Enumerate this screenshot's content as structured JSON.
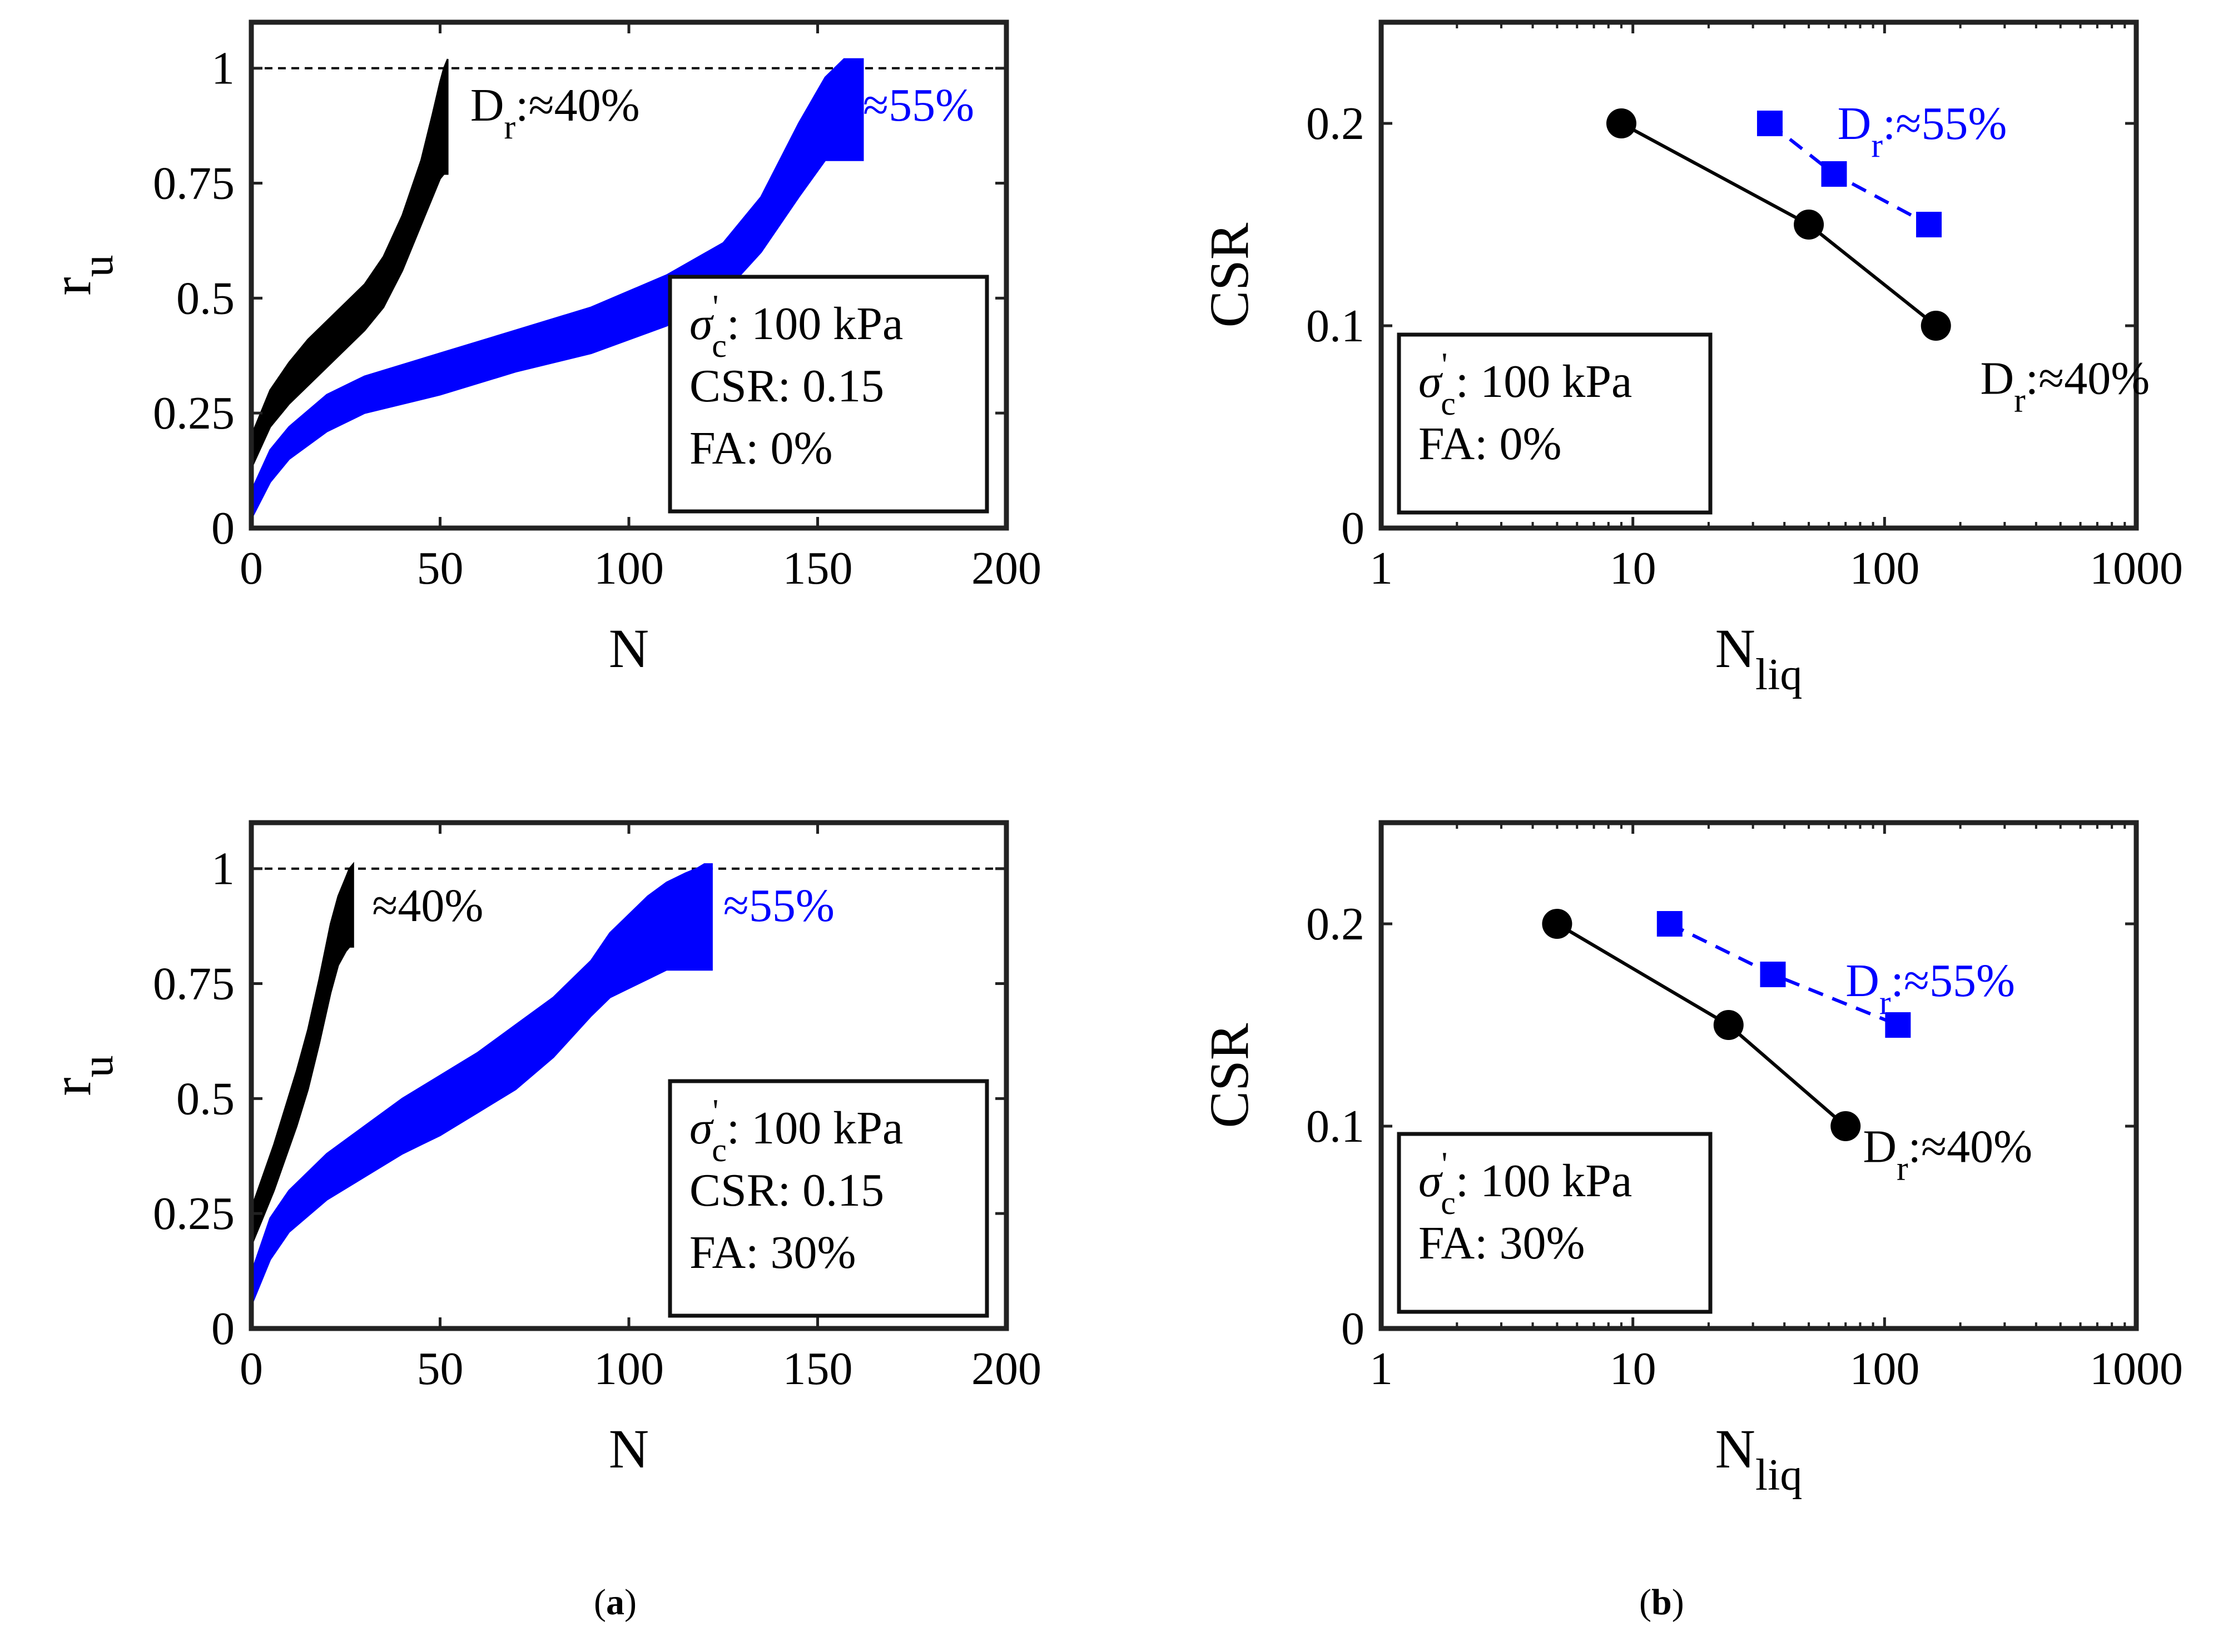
{
  "figure_labels": {
    "a": "a",
    "b": "b"
  },
  "chart_data": [
    {
      "id": "ru-fa0",
      "type": "line",
      "xlabel": "N",
      "ylabel": "r",
      "ylabel_sub": "u",
      "xlim": [
        0,
        200
      ],
      "ylim": [
        0,
        1.1
      ],
      "xticks": [
        "0",
        "50",
        "100",
        "150",
        "200"
      ],
      "xtick_values": [
        0,
        50,
        100,
        150,
        200
      ],
      "yticks": [
        "0",
        "0.25",
        "0.5",
        "0.75",
        "1"
      ],
      "ytick_values": [
        0,
        0.25,
        0.5,
        0.75,
        1
      ],
      "reference_line": {
        "y": 1,
        "style": "dashed"
      },
      "series": [
        {
          "name": "Dr≈40%",
          "color": "#000000",
          "x": [
            0,
            5,
            10,
            15,
            20,
            25,
            30,
            35,
            40,
            45,
            48,
            50,
            51,
            52
          ],
          "lower": [
            0.13,
            0.22,
            0.27,
            0.31,
            0.35,
            0.39,
            0.43,
            0.48,
            0.56,
            0.66,
            0.72,
            0.76,
            0.77,
            0.77
          ],
          "upper": [
            0.2,
            0.3,
            0.36,
            0.41,
            0.45,
            0.49,
            0.53,
            0.59,
            0.68,
            0.8,
            0.9,
            0.97,
            1.0,
            1.02
          ]
        },
        {
          "name": "Dr≈55%",
          "color": "#0000ff",
          "x": [
            0,
            5,
            10,
            20,
            30,
            50,
            70,
            90,
            110,
            125,
            135,
            145,
            152,
            157,
            160,
            162
          ],
          "lower": [
            0.02,
            0.1,
            0.15,
            0.21,
            0.25,
            0.29,
            0.34,
            0.38,
            0.44,
            0.51,
            0.6,
            0.72,
            0.8,
            0.8,
            0.8,
            0.8
          ],
          "upper": [
            0.08,
            0.17,
            0.22,
            0.29,
            0.33,
            0.38,
            0.43,
            0.48,
            0.55,
            0.62,
            0.72,
            0.88,
            0.98,
            1.02,
            1.02,
            1.02
          ]
        }
      ],
      "annotations": [
        {
          "text": "D",
          "sub": "r",
          "tail": ":≈40%",
          "color": "#000000",
          "at_x": 58,
          "at_y": 0.92
        },
        {
          "text": "≈55%",
          "color": "#0000ff",
          "at_x": 162,
          "at_y": 0.92
        }
      ],
      "legend_box": {
        "sigma_label": "σ",
        "sigma_sub": "c",
        "sigma_sup": "'",
        "lines": [
          ": 100 kPa",
          "CSR: 0.15",
          "FA: 0%"
        ]
      }
    },
    {
      "id": "csr-fa0",
      "type": "line",
      "xscale": "log",
      "xlabel": "N",
      "xlabel_sub": "liq",
      "ylabel": "CSR",
      "xlim": [
        1,
        1000
      ],
      "ylim": [
        0,
        0.25
      ],
      "xticks": [
        "1",
        "10",
        "100",
        "1000"
      ],
      "xtick_values": [
        1,
        10,
        100,
        1000
      ],
      "yticks": [
        "0",
        "0.1",
        "0.2"
      ],
      "ytick_values": [
        0,
        0.1,
        0.2
      ],
      "series": [
        {
          "name": "Dr≈40%",
          "color": "#000000",
          "marker": "circle",
          "line": "solid",
          "x": [
            9,
            50,
            160
          ],
          "y": [
            0.2,
            0.15,
            0.1
          ]
        },
        {
          "name": "Dr≈55%",
          "color": "#0000ff",
          "marker": "square",
          "line": "dashed",
          "x": [
            35,
            63,
            150
          ],
          "y": [
            0.2,
            0.175,
            0.15
          ]
        }
      ],
      "annotations": [
        {
          "text": "D",
          "sub": "r",
          "tail": ":≈55%",
          "color": "#0000ff",
          "at_x": 65,
          "at_y": 0.2
        },
        {
          "text": "D",
          "sub": "r",
          "tail": ":≈40%",
          "color": "#000000",
          "at_x": 240,
          "at_y": 0.074
        }
      ],
      "legend_box": {
        "sigma_label": "σ",
        "sigma_sub": "c",
        "sigma_sup": "'",
        "lines": [
          ": 100 kPa",
          "FA: 0%"
        ]
      }
    },
    {
      "id": "ru-fa30",
      "type": "line",
      "xlabel": "N",
      "ylabel": "r",
      "ylabel_sub": "u",
      "xlim": [
        0,
        200
      ],
      "ylim": [
        0,
        1.1
      ],
      "xticks": [
        "0",
        "50",
        "100",
        "150",
        "200"
      ],
      "xtick_values": [
        0,
        50,
        100,
        150,
        200
      ],
      "yticks": [
        "0",
        "0.25",
        "0.5",
        "0.75",
        "1"
      ],
      "ytick_values": [
        0,
        0.25,
        0.5,
        0.75,
        1
      ],
      "reference_line": {
        "y": 1,
        "style": "dashed"
      },
      "series": [
        {
          "name": "Dr≈40%",
          "color": "#000000",
          "x": [
            0,
            3,
            6,
            9,
            12,
            15,
            18,
            21,
            23,
            25,
            26,
            27
          ],
          "lower": [
            0.18,
            0.24,
            0.3,
            0.37,
            0.44,
            0.52,
            0.62,
            0.73,
            0.79,
            0.82,
            0.83,
            0.83
          ],
          "upper": [
            0.26,
            0.33,
            0.4,
            0.48,
            0.56,
            0.65,
            0.76,
            0.88,
            0.94,
            0.98,
            1.0,
            1.01
          ]
        },
        {
          "name": "Dr≈55%",
          "color": "#0000ff",
          "x": [
            0,
            5,
            10,
            20,
            30,
            40,
            50,
            60,
            70,
            80,
            90,
            95,
            100,
            105,
            110,
            115,
            118,
            120,
            122
          ],
          "lower": [
            0.05,
            0.15,
            0.21,
            0.28,
            0.33,
            0.38,
            0.42,
            0.47,
            0.52,
            0.59,
            0.68,
            0.72,
            0.74,
            0.76,
            0.78,
            0.78,
            0.78,
            0.78,
            0.78
          ],
          "upper": [
            0.12,
            0.24,
            0.3,
            0.38,
            0.44,
            0.5,
            0.55,
            0.6,
            0.66,
            0.72,
            0.8,
            0.86,
            0.9,
            0.94,
            0.97,
            0.99,
            1.0,
            1.01,
            1.01
          ]
        }
      ],
      "annotations": [
        {
          "text": "≈40%",
          "color": "#000000",
          "at_x": 32,
          "at_y": 0.92
        },
        {
          "text": "≈55%",
          "color": "#0000ff",
          "at_x": 125,
          "at_y": 0.92
        }
      ],
      "legend_box": {
        "sigma_label": "σ",
        "sigma_sub": "c",
        "sigma_sup": "'",
        "lines": [
          ": 100 kPa",
          "CSR: 0.15",
          "FA: 30%"
        ]
      }
    },
    {
      "id": "csr-fa30",
      "type": "line",
      "xscale": "log",
      "xlabel": "N",
      "xlabel_sub": "liq",
      "ylabel": "CSR",
      "xlim": [
        1,
        1000
      ],
      "ylim": [
        0,
        0.25
      ],
      "xticks": [
        "1",
        "10",
        "100",
        "1000"
      ],
      "xtick_values": [
        1,
        10,
        100,
        1000
      ],
      "yticks": [
        "0",
        "0.1",
        "0.2"
      ],
      "ytick_values": [
        0,
        0.1,
        0.2
      ],
      "series": [
        {
          "name": "Dr≈40%",
          "color": "#000000",
          "marker": "circle",
          "line": "solid",
          "x": [
            5,
            24,
            70
          ],
          "y": [
            0.2,
            0.15,
            0.1
          ]
        },
        {
          "name": "Dr≈55%",
          "color": "#0000ff",
          "marker": "square",
          "line": "dashed",
          "x": [
            14,
            36,
            113
          ],
          "y": [
            0.2,
            0.175,
            0.15
          ]
        }
      ],
      "annotations": [
        {
          "text": "D",
          "sub": "r",
          "tail": ":≈55%",
          "color": "#0000ff",
          "at_x": 70,
          "at_y": 0.172
        },
        {
          "text": "D",
          "sub": "r",
          "tail": ":≈40%",
          "color": "#000000",
          "at_x": 82,
          "at_y": 0.09
        }
      ],
      "legend_box": {
        "sigma_label": "σ",
        "sigma_sub": "c",
        "sigma_sup": "'",
        "lines": [
          ": 100 kPa",
          "FA: 30%"
        ]
      }
    }
  ]
}
